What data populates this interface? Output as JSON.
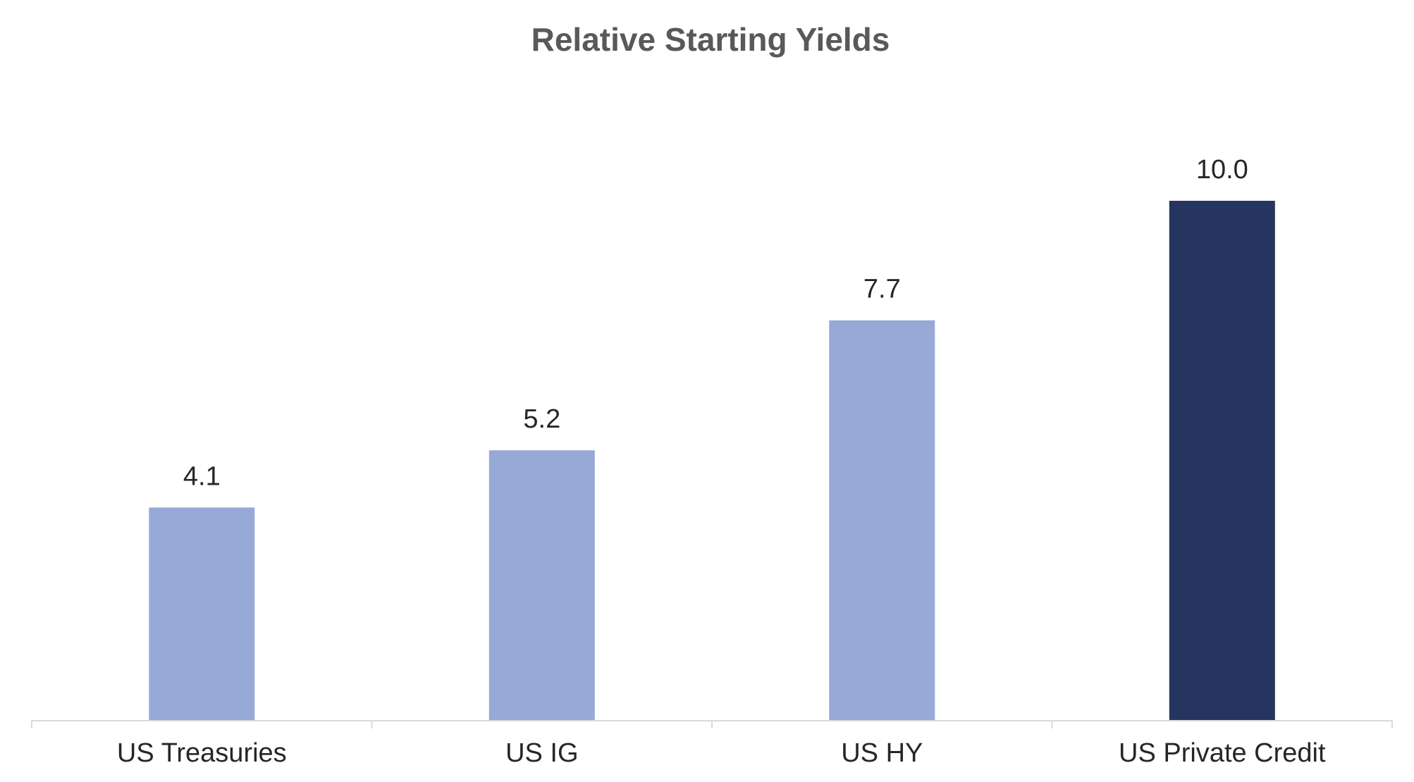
{
  "chart_data": {
    "type": "bar",
    "title": "Relative Starting Yields",
    "xlabel": "",
    "ylabel": "",
    "categories": [
      "US Treasuries",
      "US IG",
      "US HY",
      "US Private Credit"
    ],
    "values": [
      4.1,
      5.2,
      7.7,
      10.0
    ],
    "data_labels": [
      "4.1",
      "5.2",
      "7.7",
      "10.0"
    ],
    "bar_colors": [
      "#97A9D6",
      "#97A9D6",
      "#97A9D6",
      "#253560"
    ],
    "ylim": [
      0,
      11
    ],
    "grid": false,
    "legend": "none"
  },
  "colors": {
    "title": "#595959",
    "text": "#262626",
    "axis": "#d9d9d9",
    "bar_light": "#97A9D6",
    "bar_dark": "#253560"
  }
}
